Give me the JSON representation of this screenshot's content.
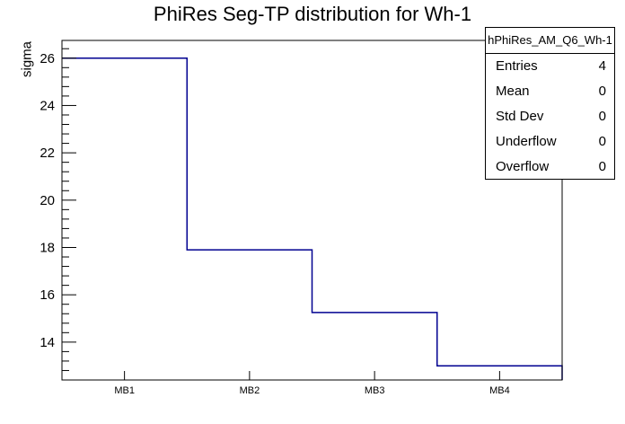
{
  "title": "PhiRes Seg-TP distribution for Wh-1",
  "axes": {
    "y_label": "sigma",
    "y_tick_labels": [
      "14",
      "16",
      "18",
      "20",
      "22",
      "24",
      "26"
    ],
    "x_tick_labels": [
      "MB1",
      "MB2",
      "MB3",
      "MB4"
    ]
  },
  "stats_box": {
    "header": "hPhiRes_AM_Q6_Wh-1",
    "rows": [
      {
        "label": "Entries",
        "value": "4"
      },
      {
        "label": "Mean",
        "value": "0"
      },
      {
        "label": "Std Dev",
        "value": "0"
      },
      {
        "label": "Underflow",
        "value": "0"
      },
      {
        "label": "Overflow",
        "value": "0"
      }
    ]
  },
  "chart_data": {
    "type": "line",
    "style": "step-histogram",
    "title": "PhiRes Seg-TP distribution for Wh-1",
    "categories": [
      "MB1",
      "MB2",
      "MB3",
      "MB4"
    ],
    "values": [
      26.0,
      17.9,
      15.25,
      13.0
    ],
    "xlabel": "",
    "ylabel": "sigma",
    "ylim": [
      12.4,
      26.75
    ],
    "y_major_ticks": [
      14,
      16,
      18,
      20,
      22,
      24,
      26
    ],
    "y_minor_step": 0.4,
    "grid": false,
    "legend": "none"
  },
  "colors": {
    "histogram_line": "#000090",
    "frame": "#000000",
    "background": "#ffffff",
    "text": "#000000"
  }
}
